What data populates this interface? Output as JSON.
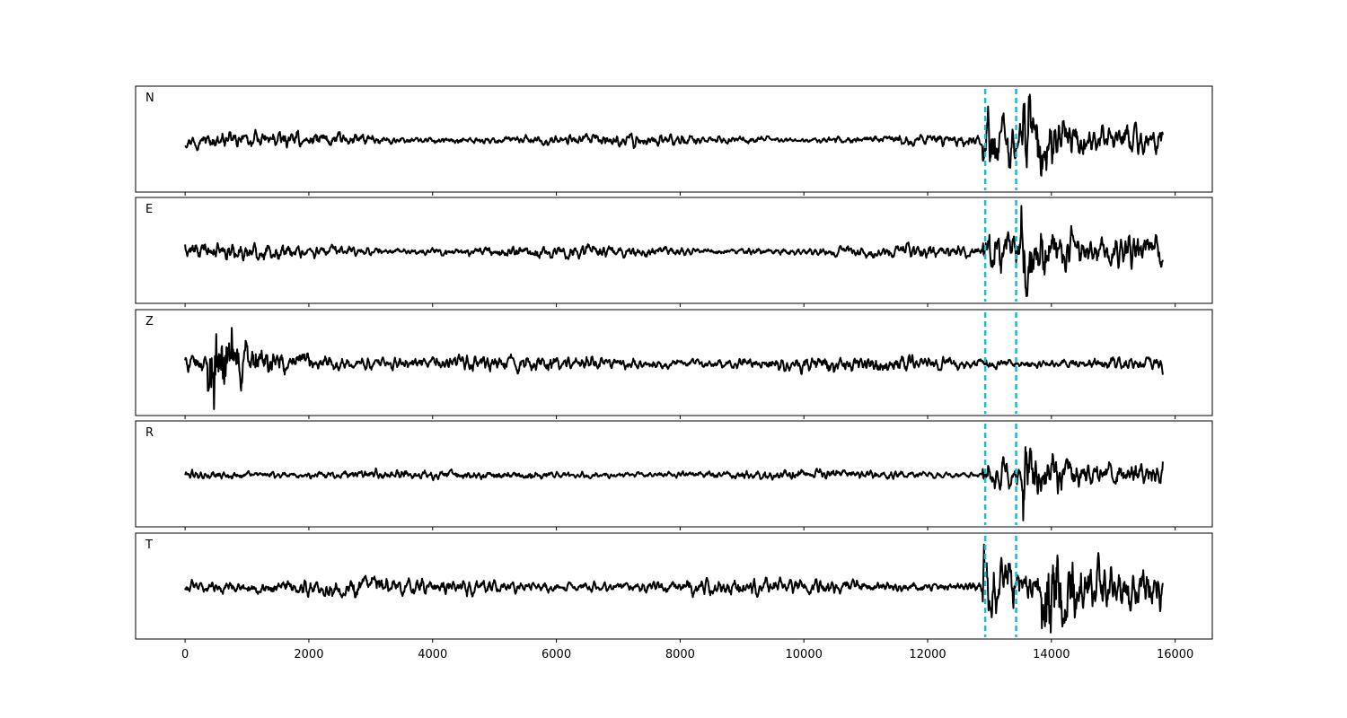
{
  "chart_data": {
    "type": "line",
    "title": "",
    "xlabel": "",
    "ylabel": "",
    "xlim": [
      -800,
      16600
    ],
    "x_ticks": [
      0,
      2000,
      4000,
      6000,
      8000,
      10000,
      12000,
      14000,
      16000
    ],
    "x_tick_labels": [
      "0",
      "2000",
      "4000",
      "6000",
      "8000",
      "10000",
      "12000",
      "14000",
      "16000"
    ],
    "sample_count": 15800,
    "y_ticks_visible": false,
    "grid": false,
    "legend": "none",
    "colors": {
      "trace": "#000000",
      "pick": "#17becf"
    },
    "pick_lines_x": [
      12930,
      13430
    ],
    "panels": [
      {
        "label": "N",
        "bursts": [
          {
            "x": 12950,
            "amp": 0.95
          },
          {
            "x": 13600,
            "amp": 1.0
          }
        ]
      },
      {
        "label": "E",
        "bursts": [
          {
            "x": 12950,
            "amp": 0.8
          },
          {
            "x": 13570,
            "amp": 1.0
          }
        ]
      },
      {
        "label": "Z",
        "bursts": [
          {
            "x": 420,
            "amp": 1.0
          }
        ]
      },
      {
        "label": "R",
        "bursts": [
          {
            "x": 12950,
            "amp": 0.75
          },
          {
            "x": 13600,
            "amp": 1.0
          }
        ]
      },
      {
        "label": "T",
        "bursts": [
          {
            "x": 12950,
            "amp": 0.8
          },
          {
            "x": 13900,
            "amp": 1.0
          }
        ]
      }
    ]
  }
}
